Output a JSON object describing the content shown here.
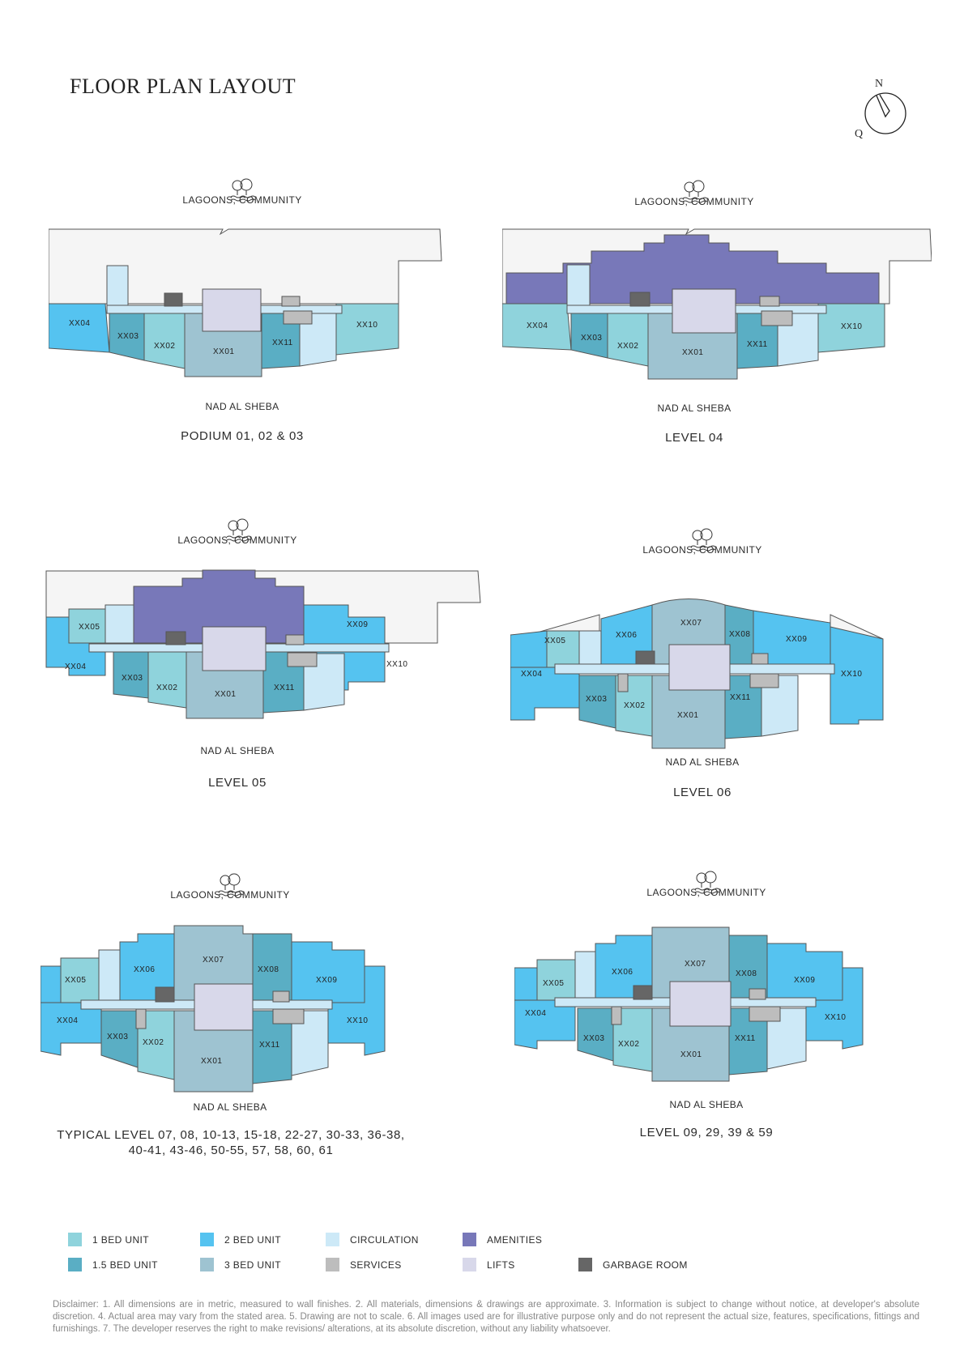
{
  "title": "FLOOR PLAN LAYOUT",
  "compass": {
    "north": "N",
    "south": "Q"
  },
  "colors": {
    "one_bed": "#8fd3dc",
    "one_half_bed": "#5aaec4",
    "two_bed": "#55c3f0",
    "three_bed": "#9ec3d1",
    "circulation": "#cde9f7",
    "services": "#bdbdbd",
    "amenities": "#7878b9",
    "lifts": "#d8d8ea",
    "garbage": "#666666",
    "podium": "#f5f5f5"
  },
  "plans": [
    {
      "top_label": "LAGOONS, COMMUNITY",
      "bottom_label": "NAD AL SHEBA",
      "caption": "PODIUM 01, 02 & 03",
      "units": [
        "XX04",
        "XX03",
        "XX02",
        "XX01",
        "XX11",
        "XX10"
      ]
    },
    {
      "top_label": "LAGOONS, COMMUNITY",
      "bottom_label": "NAD AL SHEBA",
      "caption": "LEVEL 04",
      "units": [
        "XX04",
        "XX03",
        "XX02",
        "XX01",
        "XX11",
        "XX10"
      ]
    },
    {
      "top_label": "LAGOONS, COMMUNITY",
      "bottom_label": "NAD AL SHEBA",
      "caption": "LEVEL 05",
      "units": [
        "XX05",
        "XX04",
        "XX03",
        "XX02",
        "XX01",
        "XX11",
        "XX09",
        "XX10"
      ]
    },
    {
      "top_label": "LAGOONS, COMMUNITY",
      "bottom_label": "NAD AL SHEBA",
      "caption": "LEVEL 06",
      "units": [
        "XX05",
        "XX06",
        "XX07",
        "XX08",
        "XX09",
        "XX04",
        "XX03",
        "XX02",
        "XX01",
        "XX11",
        "XX10"
      ]
    },
    {
      "top_label": "LAGOONS, COMMUNITY",
      "bottom_label": "NAD AL SHEBA",
      "caption": "TYPICAL LEVEL 07, 08, 10-13, 15-18, 22-27, 30-33, 36-38,",
      "caption2": "40-41, 43-46, 50-55, 57, 58, 60, 61",
      "units": [
        "XX05",
        "XX06",
        "XX07",
        "XX08",
        "XX09",
        "XX04",
        "XX03",
        "XX02",
        "XX01",
        "XX11",
        "XX10"
      ]
    },
    {
      "top_label": "LAGOONS, COMMUNITY",
      "bottom_label": "NAD AL SHEBA",
      "caption": "LEVEL  09, 29, 39 & 59",
      "units": [
        "XX05",
        "XX06",
        "XX07",
        "XX08",
        "XX09",
        "XX04",
        "XX03",
        "XX02",
        "XX01",
        "XX11",
        "XX10"
      ]
    }
  ],
  "legend": [
    {
      "label": "1 BED UNIT",
      "color": "#8fd3dc"
    },
    {
      "label": "2 BED UNIT",
      "color": "#55c3f0"
    },
    {
      "label": "CIRCULATION",
      "color": "#cde9f7"
    },
    {
      "label": "AMENITIES",
      "color": "#7878b9"
    },
    {
      "label": "1.5 BED UNIT",
      "color": "#5aaec4"
    },
    {
      "label": "3 BED UNIT",
      "color": "#9ec3d1"
    },
    {
      "label": "SERVICES",
      "color": "#bdbdbd"
    },
    {
      "label": "LIFTS",
      "color": "#d8d8ea"
    },
    {
      "label": "GARBAGE ROOM",
      "color": "#666666"
    }
  ],
  "disclaimer": "Disclaimer: 1. All dimensions are in metric, measured to wall finishes. 2. All materials, dimensions & drawings are approximate. 3. Information is subject to change without notice, at developer's absolute discretion. 4. Actual area may vary from the stated area. 5. Drawing are not to scale. 6. All images used are for illustrative purpose only and do not represent the actual size, features, specifications, fittings and furnishings. 7. The developer reserves the right to make revisions/ alterations, at its absolute discretion, without any liability whatsoever."
}
